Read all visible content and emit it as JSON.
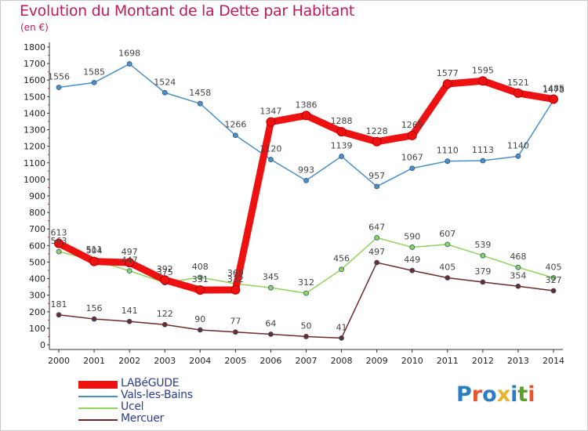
{
  "header": {
    "title": "Evolution du Montant de la Dette par Habitant",
    "subtitle": "(en €)"
  },
  "logo": {
    "text": "Proxiti",
    "colors": [
      "#2a7fc4",
      "#e8542f",
      "#2a7fc4",
      "#e8b42f",
      "#2a7fc4",
      "#5aa02c",
      "#e8542f"
    ]
  },
  "chart_data": {
    "type": "line",
    "title": "Evolution du Montant de la Dette par Habitant",
    "subtitle": "(en €)",
    "xlabel": "",
    "ylabel": "",
    "x": [
      "2000",
      "2001",
      "2002",
      "2003",
      "2004",
      "2005",
      "2006",
      "2007",
      "2008",
      "2009",
      "2010",
      "2011",
      "2012",
      "2013",
      "2014"
    ],
    "ylim": [
      0,
      1800
    ],
    "yticks": [
      0,
      100,
      200,
      300,
      400,
      500,
      600,
      700,
      800,
      900,
      1000,
      1100,
      1200,
      1300,
      1400,
      1500,
      1600,
      1700,
      1800
    ],
    "grid": false,
    "legend_position": "bottom-left",
    "series": [
      {
        "name": "LABéGUDE",
        "color": "#ee1111",
        "values": [
          613,
          504,
          497,
          392,
          331,
          332,
          1347,
          1386,
          1288,
          1228,
          1265,
          1577,
          1595,
          1521,
          1485
        ]
      },
      {
        "name": "Vals-les-Bains",
        "color": "#4a90c8",
        "values": [
          1556,
          1585,
          1698,
          1524,
          1458,
          1266,
          1120,
          993,
          1139,
          957,
          1067,
          1110,
          1113,
          1140,
          1478
        ]
      },
      {
        "name": "Ucel",
        "color": "#8ed45e",
        "values": [
          563,
          511,
          447,
          375,
          408,
          369,
          345,
          312,
          456,
          647,
          590,
          607,
          539,
          468,
          405
        ]
      },
      {
        "name": "Mercuer",
        "color": "#6e2a2a",
        "values": [
          181,
          156,
          141,
          122,
          90,
          77,
          64,
          50,
          41,
          497,
          449,
          405,
          379,
          354,
          327
        ]
      }
    ]
  }
}
